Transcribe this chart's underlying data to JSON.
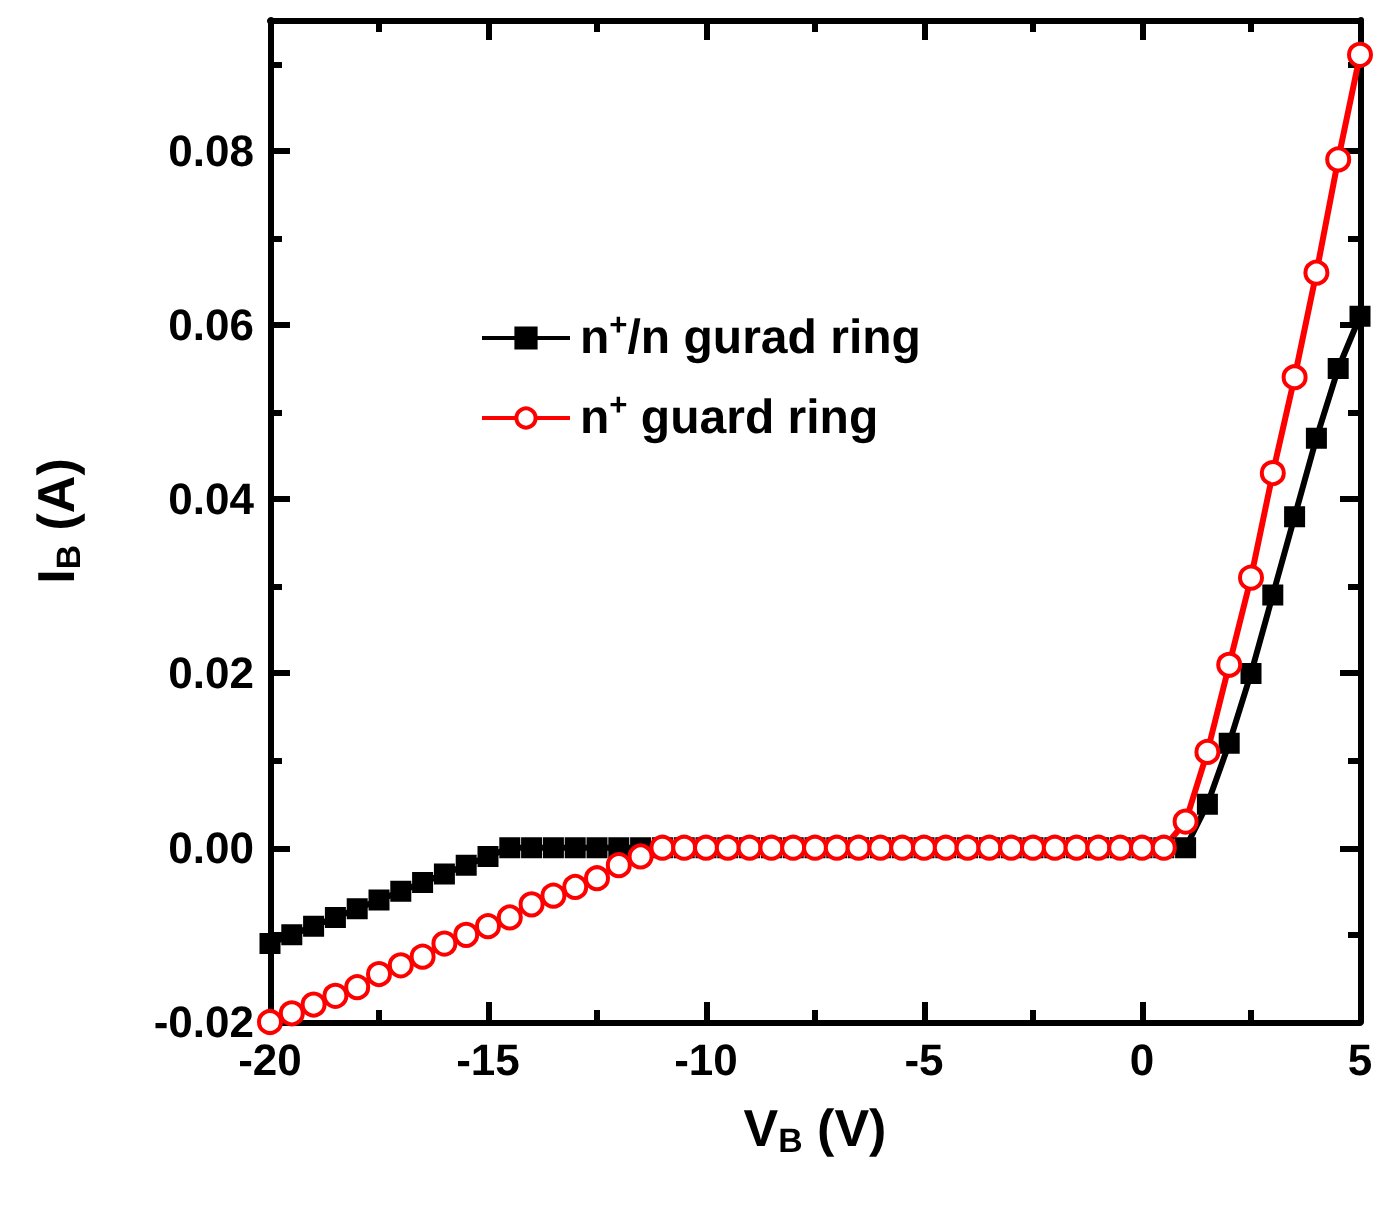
{
  "chart_data": {
    "type": "line",
    "xlabel": "V$_{B}$ (V)",
    "ylabel": "I$_{B}$ (A)",
    "x": [
      -20,
      -19.5,
      -19,
      -18.5,
      -18,
      -17.5,
      -17,
      -16.5,
      -16,
      -15.5,
      -15,
      -14.5,
      -14,
      -13.5,
      -13,
      -12.5,
      -12,
      -11.5,
      -11,
      -10.5,
      -10,
      -9.5,
      -9,
      -8.5,
      -8,
      -7.5,
      -7,
      -6.5,
      -6,
      -5.5,
      -5,
      -4.5,
      -4,
      -3.5,
      -3,
      -2.5,
      -2,
      -1.5,
      -1,
      -0.5,
      0,
      0.5,
      1,
      1.5,
      2,
      2.5,
      3,
      3.5,
      4,
      4.5,
      5
    ],
    "series": [
      {
        "name": "n$^{+}$/n gurad ring",
        "color": "#000000",
        "marker": "square",
        "values": [
          -0.011,
          -0.01,
          -0.009,
          -0.008,
          -0.007,
          -0.006,
          -0.005,
          -0.004,
          -0.003,
          -0.002,
          -0.001,
          0,
          0,
          0,
          0,
          0,
          0,
          0,
          0,
          0,
          0,
          0,
          0,
          0,
          0,
          0,
          0,
          0,
          0,
          0,
          0,
          0,
          0,
          0,
          0,
          0,
          0,
          0,
          0,
          0,
          0,
          0,
          0,
          0.005,
          0.012,
          0.02,
          0.029,
          0.038,
          0.047,
          0.055,
          0.061
        ]
      },
      {
        "name": "n$^{+}$ guard ring",
        "color": "#ff0000",
        "marker": "circle",
        "values": [
          -0.02,
          -0.019,
          -0.018,
          -0.017,
          -0.016,
          -0.0145,
          -0.0135,
          -0.0125,
          -0.011,
          -0.01,
          -0.009,
          -0.008,
          -0.0065,
          -0.0055,
          -0.0045,
          -0.0035,
          -0.002,
          -0.001,
          0,
          0,
          0,
          0,
          0,
          0,
          0,
          0,
          0,
          0,
          0,
          0,
          0,
          0,
          0,
          0,
          0,
          0,
          0,
          0,
          0,
          0,
          0,
          0,
          0.003,
          0.011,
          0.021,
          0.031,
          0.043,
          0.054,
          0.066,
          0.079,
          0.091
        ]
      }
    ],
    "xlim": [
      -20,
      5
    ],
    "xticks": [
      -20,
      -15,
      -10,
      -5,
      0,
      5
    ],
    "ylim": [
      -0.02,
      0.095
    ],
    "yticks": [
      {
        "value": -0.02,
        "label": "-0.02"
      },
      {
        "value": 0,
        "label": "0.00"
      },
      {
        "value": 0.02,
        "label": "0.02"
      },
      {
        "value": 0.04,
        "label": "0.04"
      },
      {
        "value": 0.06,
        "label": "0.06"
      },
      {
        "value": 0.08,
        "label": "0.08"
      }
    ],
    "grid": false,
    "legend": "left",
    "line_style": "solid"
  }
}
